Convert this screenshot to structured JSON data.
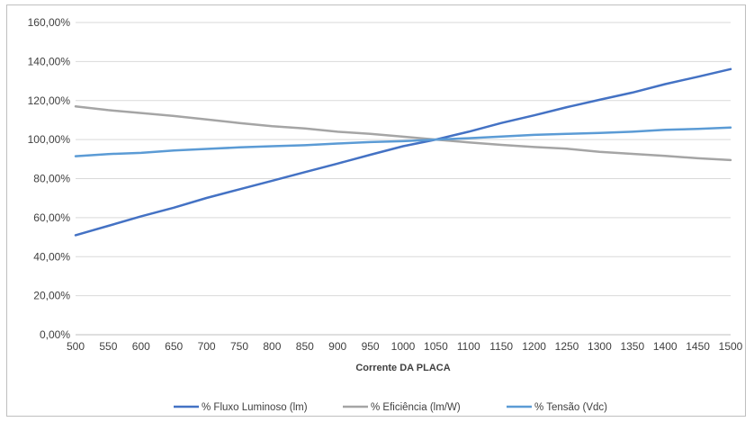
{
  "chart_data": {
    "type": "line",
    "title": "",
    "xlabel": "Corrente  DA PLACA",
    "ylabel": "",
    "x": [
      500,
      550,
      600,
      650,
      700,
      750,
      800,
      850,
      900,
      950,
      1000,
      1050,
      1100,
      1150,
      1200,
      1250,
      1300,
      1350,
      1400,
      1450,
      1500
    ],
    "x_tick_labels": [
      "500",
      "550",
      "600",
      "650",
      "700",
      "750",
      "800",
      "850",
      "900",
      "950",
      "1000",
      "1050",
      "1100",
      "1150",
      "1200",
      "1250",
      "1300",
      "1350",
      "1400",
      "1450",
      "1500"
    ],
    "y_tick_labels": [
      "0,00%",
      "20,00%",
      "40,00%",
      "60,00%",
      "80,00%",
      "100,00%",
      "120,00%",
      "140,00%",
      "160,00%"
    ],
    "ylim": [
      0,
      160
    ],
    "y_unit": "%",
    "grid": "horizontal",
    "legend_position": "bottom",
    "series": [
      {
        "name": "% Fluxo Luminoso (lm)",
        "color": "#4472c4",
        "values": [
          51,
          55.8,
          60.7,
          65.1,
          70.1,
          74.5,
          78.9,
          83.3,
          87.7,
          92.2,
          96.6,
          100,
          104,
          108.5,
          112.4,
          116.6,
          120.4,
          124.1,
          128.4,
          132.2,
          136.1
        ]
      },
      {
        "name": "% Eficiência (lm/W)",
        "color": "#a5a5a5",
        "values": [
          117,
          115.1,
          113.6,
          112.1,
          110.3,
          108.5,
          106.9,
          105.7,
          104,
          102.9,
          101.5,
          100,
          98.6,
          97.3,
          96.2,
          95.3,
          93.7,
          92.7,
          91.6,
          90.4,
          89.5
        ]
      },
      {
        "name": "% Tensão (Vdc)",
        "color": "#5b9bd5",
        "values": [
          91.5,
          92.6,
          93.2,
          94.4,
          95.2,
          96,
          96.6,
          97.1,
          98,
          98.7,
          99.2,
          100,
          100.7,
          101.6,
          102.4,
          102.9,
          103.4,
          104,
          105,
          105.5,
          106.2
        ]
      }
    ]
  }
}
